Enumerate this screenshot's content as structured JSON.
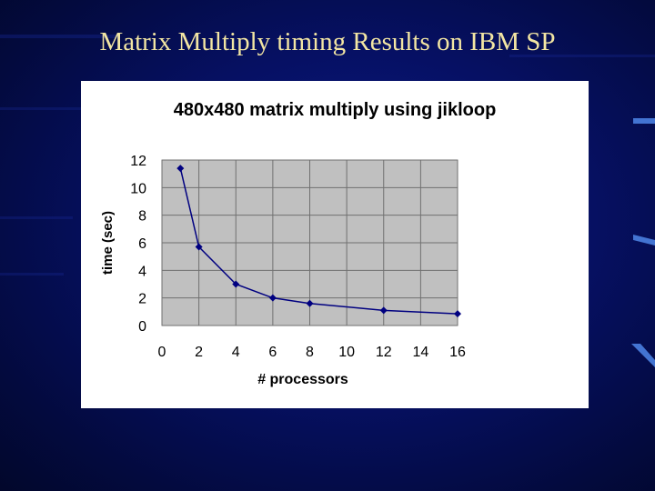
{
  "slide": {
    "title": "Matrix Multiply timing Results on IBM SP"
  },
  "colors": {
    "background": "#061063",
    "title": "#f3e6a3",
    "plot_area": "#c0c0c0",
    "series": "#000080"
  },
  "chart_data": {
    "type": "scatter",
    "title": "480x480 matrix multiply using jikloop",
    "xlabel": "# processors",
    "ylabel": "time (sec)",
    "xlim": [
      0,
      16
    ],
    "ylim": [
      0,
      12
    ],
    "xticks": [
      0,
      2,
      4,
      6,
      8,
      10,
      12,
      14,
      16
    ],
    "yticks": [
      0,
      2,
      4,
      6,
      8,
      10,
      12
    ],
    "grid": true,
    "legend": "none",
    "series": [
      {
        "x": [
          1,
          2,
          4,
          6,
          8,
          12,
          16
        ],
        "y": [
          11.4,
          5.7,
          3.0,
          2.0,
          1.6,
          1.1,
          0.85
        ]
      }
    ]
  }
}
